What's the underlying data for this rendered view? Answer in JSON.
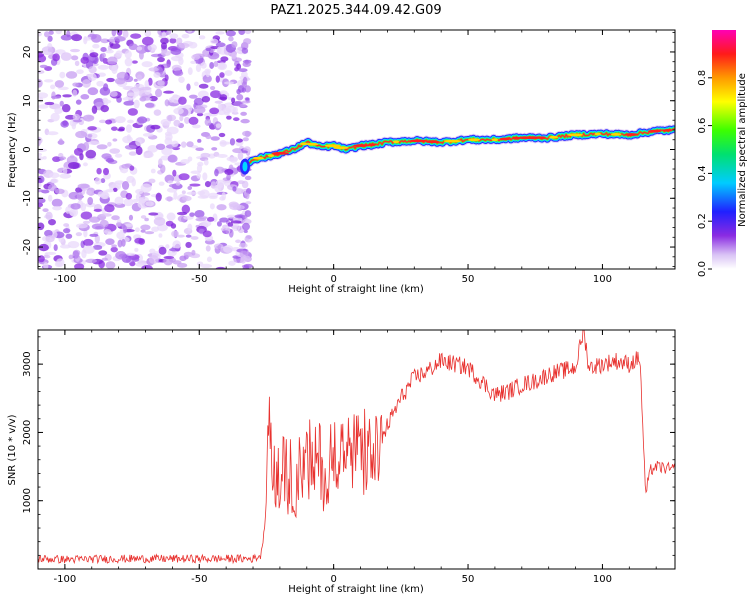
{
  "title": "PAZ1.2025.344.09.42.G09",
  "chart_data": [
    {
      "type": "heatmap",
      "name": "spectrogram",
      "xlabel": "Height of straight line (km)",
      "ylabel": "Frequency (Hz)",
      "xlim": [
        -110,
        127
      ],
      "ylim": [
        -24.5,
        24.5
      ],
      "x_ticks": [
        -100,
        -50,
        0,
        50,
        100
      ],
      "y_ticks": [
        -20,
        -10,
        0,
        10,
        20
      ],
      "noise_region": {
        "x_start": -110,
        "x_end": -33
      },
      "signal_track": {
        "x": [
          -33,
          -30,
          -25,
          -20,
          -15,
          -10,
          -5,
          0,
          5,
          10,
          15,
          20,
          30,
          40,
          50,
          60,
          70,
          80,
          90,
          100,
          110,
          120,
          127
        ],
        "y": [
          -3.5,
          -2.0,
          -1.5,
          -0.8,
          0.0,
          1.5,
          0.5,
          0.8,
          0.0,
          0.8,
          1.0,
          1.5,
          1.8,
          1.5,
          2.0,
          2.0,
          2.4,
          2.4,
          3.0,
          3.2,
          3.0,
          3.8,
          4.0
        ]
      },
      "colorbar": {
        "label": "Normalized spectral amplitude",
        "range": [
          0.0,
          1.0
        ],
        "ticks": [
          0.0,
          0.2,
          0.4,
          0.6,
          0.8
        ],
        "tick_labels": [
          "0.0",
          "0.2",
          "0.4",
          "0.6",
          "0.8"
        ]
      }
    },
    {
      "type": "line",
      "name": "snr",
      "xlabel": "Height of straight line (km)",
      "ylabel": "SNR (10 * v/v)",
      "xlim": [
        -110,
        127
      ],
      "ylim": [
        0,
        3500
      ],
      "x_ticks": [
        -100,
        -50,
        0,
        50,
        100
      ],
      "y_ticks": [
        1000,
        2000,
        3000
      ],
      "series": [
        {
          "name": "SNR",
          "color": "#e8322f",
          "x": [
            -110,
            -100,
            -80,
            -60,
            -40,
            -30,
            -27,
            -25,
            -24,
            -22,
            -20,
            -15,
            -10,
            -5,
            -2,
            0,
            5,
            10,
            15,
            20,
            25,
            30,
            35,
            40,
            45,
            50,
            55,
            60,
            65,
            70,
            75,
            80,
            85,
            90,
            93,
            95,
            100,
            105,
            110,
            114,
            116,
            118,
            120,
            127
          ],
          "y": [
            150,
            140,
            150,
            150,
            150,
            150,
            200,
            900,
            2200,
            1200,
            1400,
            1300,
            1500,
            1600,
            1200,
            1800,
            1700,
            1700,
            1600,
            2100,
            2500,
            2800,
            2900,
            3050,
            3000,
            2950,
            2750,
            2550,
            2600,
            2700,
            2750,
            2850,
            2900,
            2950,
            3500,
            2950,
            3000,
            3050,
            3000,
            3100,
            1100,
            1450,
            1500,
            1450
          ]
        }
      ]
    }
  ]
}
